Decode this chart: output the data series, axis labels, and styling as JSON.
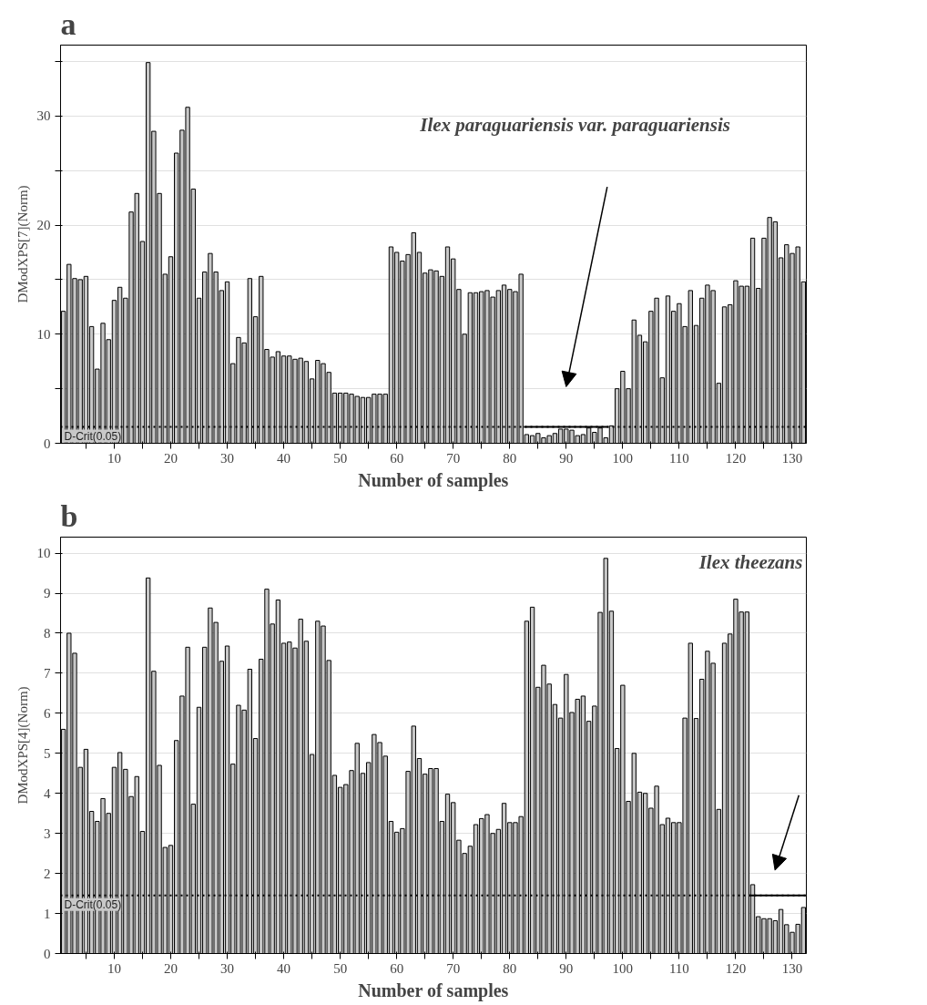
{
  "chart_data": [
    {
      "type": "bar",
      "title": "a",
      "xlabel": "Number of samples",
      "ylabel": "DModXPS[7](Norm)",
      "x": [
        1,
        2,
        3,
        4,
        5,
        6,
        7,
        8,
        9,
        10,
        11,
        12,
        13,
        14,
        15,
        16,
        17,
        18,
        19,
        20,
        21,
        22,
        23,
        24,
        25,
        26,
        27,
        28,
        29,
        30,
        31,
        32,
        33,
        34,
        35,
        36,
        37,
        38,
        39,
        40,
        41,
        42,
        43,
        44,
        45,
        46,
        47,
        48,
        49,
        50,
        51,
        52,
        53,
        54,
        55,
        56,
        57,
        58,
        59,
        60,
        61,
        62,
        63,
        64,
        65,
        66,
        67,
        68,
        69,
        70,
        71,
        72,
        73,
        74,
        75,
        76,
        77,
        78,
        79,
        80,
        81,
        82,
        83,
        84,
        85,
        86,
        87,
        88,
        89,
        90,
        91,
        92,
        93,
        94,
        95,
        96,
        97,
        98,
        99,
        100,
        101,
        102,
        103,
        104,
        105,
        106,
        107,
        108,
        109,
        110,
        111,
        112,
        113,
        114,
        115,
        116,
        117,
        118,
        119,
        120,
        121,
        122,
        123,
        124,
        125,
        126,
        127,
        128,
        129,
        130,
        131,
        132
      ],
      "series": [
        {
          "color": "#c8c8c8",
          "values": [
            12.1,
            16.4,
            15.1,
            15.0,
            15.3,
            10.7,
            6.8,
            11.0,
            9.5,
            13.1,
            14.3,
            13.3,
            21.2,
            22.9,
            18.5,
            34.9,
            28.6,
            22.9,
            15.5,
            17.1,
            26.6,
            28.7,
            30.8,
            23.3,
            13.3,
            15.7,
            17.4,
            15.7,
            14.0,
            14.8,
            7.3,
            9.7,
            9.2,
            15.1,
            11.6,
            15.3,
            8.6,
            7.9,
            8.4,
            8.0,
            8.0,
            7.7,
            7.8,
            7.5,
            5.9,
            7.6,
            7.3,
            6.5,
            4.6,
            4.6,
            4.6,
            4.5,
            4.3,
            4.2,
            4.2,
            4.5,
            4.5,
            4.5,
            18.0,
            17.5,
            16.7,
            17.3,
            19.3,
            17.5,
            15.6,
            15.9,
            15.8,
            15.3,
            18.0,
            16.9,
            14.1,
            10.0,
            13.8,
            13.8,
            13.9,
            14.0,
            13.4,
            14.0,
            14.5,
            14.1,
            13.9,
            15.5,
            0.8,
            0.7,
            0.9,
            0.5,
            0.7,
            0.9,
            1.3,
            1.3,
            1.2,
            0.7,
            0.8,
            1.4,
            1.0,
            1.4,
            0.5,
            1.6,
            5.0,
            6.6,
            5.0,
            11.3,
            9.9,
            9.3,
            12.1,
            13.3,
            6.0,
            13.5,
            12.1,
            12.8,
            10.7,
            14.0,
            10.8,
            13.3,
            14.5,
            14.0,
            5.5,
            12.5,
            12.7,
            14.9,
            14.4,
            14.4,
            18.8,
            14.2,
            18.8,
            20.7,
            20.3,
            17.0,
            18.2,
            17.4,
            18.0,
            14.8
          ]
        },
        {
          "type": "line",
          "color": "#000000",
          "x": [
            82.5,
            97.5
          ],
          "values": [
            1.5,
            1.5
          ]
        }
      ],
      "xlim": [
        0.5,
        132.5
      ],
      "xticks": [
        {
          "value": 5,
          "label": null
        },
        10,
        {
          "value": 15,
          "label": null
        },
        20,
        {
          "value": 25,
          "label": null
        },
        30,
        {
          "value": 35,
          "label": null
        },
        40,
        {
          "value": 45,
          "label": null
        },
        50,
        {
          "value": 55,
          "label": null
        },
        60,
        {
          "value": 65,
          "label": null
        },
        70,
        {
          "value": 75,
          "label": null
        },
        80,
        {
          "value": 85,
          "label": null
        },
        90,
        {
          "value": 95,
          "label": null
        },
        100,
        {
          "value": 105,
          "label": null
        },
        110,
        {
          "value": 115,
          "label": null
        },
        120,
        {
          "value": 125,
          "label": null
        },
        130
      ],
      "ylim": [
        0,
        36.5
      ],
      "yticks": [
        0,
        {
          "value": 5,
          "label": null
        },
        10,
        {
          "value": 15,
          "label": null
        },
        20,
        {
          "value": 25,
          "label": null
        },
        30,
        {
          "value": 35,
          "label": null
        }
      ],
      "grid": "y",
      "ref_lines": [
        {
          "axis": "y",
          "value": 1.5,
          "label": "D-Crit(0.05)",
          "color": "#000000",
          "line_style": "dotted"
        }
      ],
      "annotations": [
        "Ilex paraguariensis var. paraguariensis"
      ]
    },
    {
      "type": "bar",
      "title": "b",
      "xlabel": "Number of samples",
      "ylabel": "DModXPS[4](Norm)",
      "x": [
        1,
        2,
        3,
        4,
        5,
        6,
        7,
        8,
        9,
        10,
        11,
        12,
        13,
        14,
        15,
        16,
        17,
        18,
        19,
        20,
        21,
        22,
        23,
        24,
        25,
        26,
        27,
        28,
        29,
        30,
        31,
        32,
        33,
        34,
        35,
        36,
        37,
        38,
        39,
        40,
        41,
        42,
        43,
        44,
        45,
        46,
        47,
        48,
        49,
        50,
        51,
        52,
        53,
        54,
        55,
        56,
        57,
        58,
        59,
        60,
        61,
        62,
        63,
        64,
        65,
        66,
        67,
        68,
        69,
        70,
        71,
        72,
        73,
        74,
        75,
        76,
        77,
        78,
        79,
        80,
        81,
        82,
        83,
        84,
        85,
        86,
        87,
        88,
        89,
        90,
        91,
        92,
        93,
        94,
        95,
        96,
        97,
        98,
        99,
        100,
        101,
        102,
        103,
        104,
        105,
        106,
        107,
        108,
        109,
        110,
        111,
        112,
        113,
        114,
        115,
        116,
        117,
        118,
        119,
        120,
        121,
        122,
        123,
        124,
        125,
        126,
        127,
        128,
        129,
        130,
        131,
        132
      ],
      "series": [
        {
          "color": "#c8c8c8",
          "values": [
            5.6,
            8.0,
            7.5,
            4.65,
            5.1,
            3.55,
            3.3,
            3.87,
            3.5,
            4.65,
            5.02,
            4.6,
            3.92,
            4.42,
            3.05,
            9.38,
            7.05,
            4.7,
            2.65,
            2.7,
            5.32,
            6.43,
            7.65,
            3.73,
            6.15,
            7.65,
            8.63,
            8.27,
            7.3,
            7.68,
            4.73,
            6.2,
            6.08,
            7.1,
            5.37,
            7.35,
            9.1,
            8.23,
            8.83,
            7.75,
            7.78,
            7.63,
            8.35,
            7.8,
            4.97,
            8.3,
            8.18,
            7.32,
            4.45,
            4.15,
            4.22,
            4.57,
            5.25,
            4.5,
            4.77,
            5.47,
            5.27,
            4.93,
            3.3,
            3.03,
            3.12,
            4.55,
            5.68,
            4.87,
            4.48,
            4.62,
            4.62,
            3.3,
            3.98,
            3.77,
            2.83,
            2.5,
            2.68,
            3.22,
            3.37,
            3.47,
            3.0,
            3.1,
            3.75,
            3.27,
            3.27,
            3.42,
            8.3,
            8.65,
            6.65,
            7.2,
            6.73,
            6.22,
            5.88,
            6.97,
            6.02,
            6.35,
            6.43,
            5.8,
            6.18,
            8.52,
            9.87,
            8.55,
            5.12,
            6.7,
            3.8,
            5.0,
            4.03,
            4.0,
            3.63,
            4.18,
            3.22,
            3.38,
            3.27,
            3.27,
            5.88,
            7.75,
            5.87,
            6.85,
            7.55,
            7.25,
            3.6,
            7.75,
            7.98,
            8.85,
            8.53,
            8.53,
            1.72,
            0.92,
            0.87,
            0.87,
            0.82,
            1.1,
            0.72,
            0.53,
            0.73,
            1.15
          ]
        },
        {
          "type": "line",
          "color": "#000000",
          "x": [
            122.5,
            132.5
          ],
          "values": [
            1.45,
            1.45
          ]
        }
      ],
      "xlim": [
        0.5,
        132.5
      ],
      "xticks": [
        {
          "value": 5,
          "label": null
        },
        10,
        {
          "value": 15,
          "label": null
        },
        20,
        {
          "value": 25,
          "label": null
        },
        30,
        {
          "value": 35,
          "label": null
        },
        40,
        {
          "value": 45,
          "label": null
        },
        50,
        {
          "value": 55,
          "label": null
        },
        60,
        {
          "value": 65,
          "label": null
        },
        70,
        {
          "value": 75,
          "label": null
        },
        80,
        {
          "value": 85,
          "label": null
        },
        90,
        {
          "value": 95,
          "label": null
        },
        100,
        {
          "value": 105,
          "label": null
        },
        110,
        {
          "value": 115,
          "label": null
        },
        120,
        {
          "value": 125,
          "label": null
        },
        130
      ],
      "ylim": [
        0,
        10.4
      ],
      "yticks": [
        0,
        1,
        2,
        3,
        4,
        5,
        6,
        7,
        8,
        9,
        10
      ],
      "grid": "y",
      "ref_lines": [
        {
          "axis": "y",
          "value": 1.45,
          "label": "D-Crit(0.05)",
          "color": "#000000",
          "line_style": "dotted"
        }
      ],
      "annotations": [
        "Ilex theezans"
      ]
    }
  ]
}
